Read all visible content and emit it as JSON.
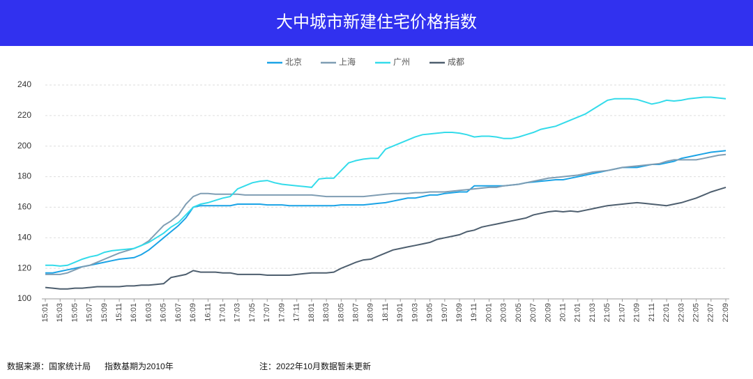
{
  "chart_data": {
    "type": "line",
    "title": "大中城市新建住宅价格指数",
    "source": "数据来源：国家统计局",
    "base_note": "指数基期为2010年",
    "note": "注：2022年10月数据暂未更新",
    "categories": [
      "15:01",
      null,
      "15:03",
      null,
      "15:05",
      null,
      "15:07",
      null,
      "15:09",
      null,
      "15:11",
      null,
      "16:01",
      null,
      "16:03",
      null,
      "16:05",
      null,
      "16:07",
      null,
      "16:09",
      null,
      "16:11",
      null,
      "17:01",
      null,
      "17:03",
      null,
      "17:05",
      null,
      "17:07",
      null,
      "17:09",
      null,
      "17:11",
      null,
      "18:01",
      null,
      "18:03",
      null,
      "18:05",
      null,
      "18:07",
      null,
      "18:09",
      null,
      "18:11",
      null,
      "19:01",
      null,
      "19:03",
      null,
      "19:05",
      null,
      "19:07",
      null,
      "19:09",
      null,
      "19:11",
      null,
      "20:01",
      null,
      "20:03",
      null,
      "20:05",
      null,
      "20:07",
      null,
      "20:09",
      null,
      "20:11",
      null,
      "21:01",
      null,
      "21:03",
      null,
      "21:05",
      null,
      "21:07",
      null,
      "21:09",
      null,
      "21:11",
      null,
      "22:01",
      null,
      "22:03",
      null,
      "22:05",
      null,
      "22:07",
      null,
      "22:09"
    ],
    "series": [
      {
        "name": "北京",
        "color": "#1aa3e6",
        "values": [
          117,
          117,
          118,
          119,
          120,
          121,
          122,
          123,
          124,
          125,
          126,
          126.5,
          127,
          129,
          132,
          136,
          140,
          144,
          148,
          153,
          160,
          161,
          161,
          161,
          161,
          161,
          162,
          162,
          162,
          162,
          161.5,
          161.5,
          161.5,
          161,
          161,
          161,
          161,
          161,
          161,
          161,
          161.5,
          161.5,
          161.5,
          161.5,
          162,
          162.5,
          163,
          164,
          165,
          166,
          166,
          167,
          168,
          168,
          169,
          169.5,
          170,
          170,
          174,
          174,
          174,
          174,
          174,
          174.5,
          175,
          176,
          176.5,
          177,
          177.5,
          178,
          178,
          179,
          180,
          181,
          182,
          183,
          184,
          185,
          186,
          186,
          186,
          187,
          188,
          188,
          189,
          190,
          192,
          193,
          194,
          195,
          196,
          196.5,
          197
        ]
      },
      {
        "name": "上海",
        "color": "#7f9db3",
        "values": [
          116,
          116,
          116,
          117,
          119,
          121,
          122,
          124,
          126,
          128,
          130,
          131.5,
          133,
          135,
          138,
          143,
          148,
          151,
          155,
          162,
          167,
          169,
          169,
          168.5,
          168.5,
          168.5,
          168.5,
          168,
          168,
          168,
          168,
          168,
          168,
          168,
          168,
          168,
          168,
          167.5,
          167,
          167,
          167,
          167,
          167,
          167,
          167.5,
          168,
          168.5,
          169,
          169,
          169,
          169.5,
          169.5,
          170,
          170,
          170,
          170.5,
          171,
          171.5,
          172,
          172.5,
          173,
          173,
          174,
          174.5,
          175,
          176,
          177,
          178,
          179,
          179.5,
          180,
          180.5,
          181,
          182,
          183,
          183.5,
          184,
          185,
          186,
          186.5,
          187,
          187.5,
          188,
          188.5,
          190,
          191,
          191,
          191,
          191,
          192,
          193,
          194,
          194.5
        ]
      },
      {
        "name": "广州",
        "color": "#33dbea",
        "values": [
          122,
          122,
          121.5,
          122,
          124,
          126,
          127.5,
          128.5,
          130.5,
          131.5,
          132,
          132.5,
          133,
          135,
          137,
          140,
          143,
          147,
          150,
          155,
          160,
          162,
          163,
          164.5,
          166,
          167,
          172,
          174,
          176,
          177,
          177.5,
          176,
          175,
          174.5,
          174,
          173.5,
          173,
          178.5,
          179,
          179,
          184,
          189,
          190.5,
          191.5,
          192,
          192,
          198,
          200,
          202,
          204,
          206,
          207.5,
          208,
          208.5,
          209,
          209,
          208.5,
          207.5,
          206,
          206.5,
          206.5,
          206,
          205,
          205,
          206,
          207.5,
          209,
          211,
          212,
          213,
          215,
          217,
          219,
          221,
          224,
          227,
          230,
          231,
          231,
          231,
          230.5,
          229,
          227.5,
          228.5,
          230,
          229.5,
          230,
          231,
          231.5,
          232,
          232,
          231.5,
          231
        ]
      },
      {
        "name": "成都",
        "color": "#4d5e6e",
        "values": [
          107.5,
          107,
          106.5,
          106.5,
          107,
          107,
          107.5,
          108,
          108,
          108,
          108,
          108.5,
          108.5,
          109,
          109,
          109.5,
          110,
          114,
          115,
          116,
          118.5,
          117.5,
          117.5,
          117.5,
          117,
          117,
          116,
          116,
          116,
          116,
          115.5,
          115.5,
          115.5,
          115.5,
          116,
          116.5,
          117,
          117,
          117,
          117.5,
          120,
          122,
          124,
          125.5,
          126,
          128,
          130,
          132,
          133,
          134,
          135,
          136,
          137,
          139,
          140,
          141,
          142,
          144,
          145,
          147,
          148,
          149,
          150,
          151,
          152,
          153,
          155,
          156,
          157,
          157.5,
          157,
          157.5,
          157,
          158,
          159,
          160,
          161,
          161.5,
          162,
          162.5,
          163,
          162.5,
          162,
          161.5,
          161,
          162,
          163,
          164.5,
          166,
          168,
          170,
          171.5,
          173
        ]
      }
    ],
    "ylim": [
      100,
      240
    ],
    "yticks": [
      100,
      120,
      140,
      160,
      180,
      200,
      220,
      240
    ],
    "grid": true
  }
}
